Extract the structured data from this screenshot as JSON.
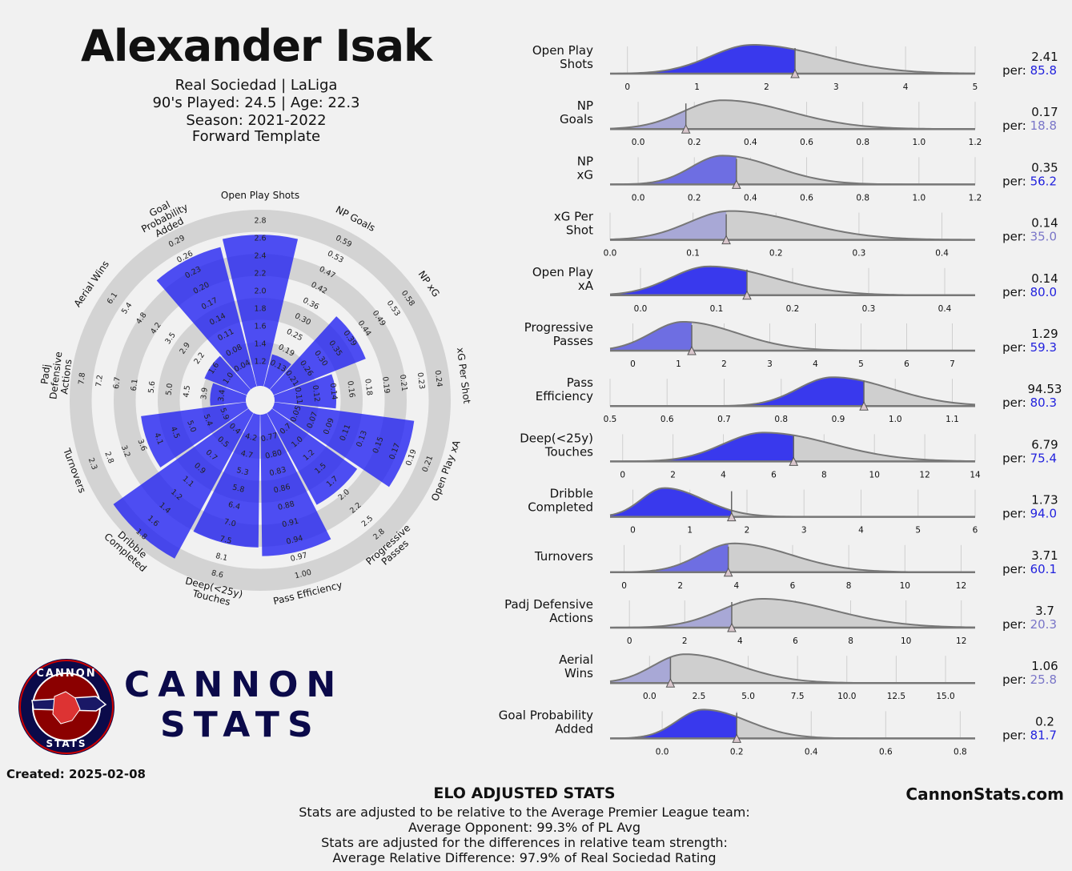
{
  "header": {
    "player": "Alexander Isak",
    "team_line": "Real Sociedad | LaLiga",
    "played_line": "90's Played: 24.5 | Age: 22.3",
    "season_line": "Season: 2021-2022",
    "template_line": "Forward Template"
  },
  "logo": {
    "ring_top": "CANNON",
    "ring_bottom": "STATS",
    "word1": "CANNON",
    "word2": "STATS"
  },
  "created": "Created: 2025-02-08",
  "footer": {
    "title": "ELO ADJUSTED STATS",
    "line1": "Stats are adjusted to be relative to the Average Premier League team:",
    "line2": "Average Opponent: 99.3% of PL Avg",
    "line3": "Stats are adjusted for the differences in relative team strength:",
    "line4": "Average Relative Difference: 97.9% of Real Sociedad Rating",
    "site": "CannonStats.com"
  },
  "colors": {
    "accent": "#1f1ff2",
    "light_fill": "#9a9ad6",
    "ring": "#d3d3d3",
    "dist_grey": "#cfcfcf",
    "pct_high": "#2222dd",
    "pct_low": "#7a76c8"
  },
  "chart_data": [
    {
      "type": "radar",
      "axes": [
        {
          "label": "Open Play Shots",
          "pct": 85.8,
          "ticks": [
            "1.2",
            "1.4",
            "1.6",
            "1.8",
            "2.0",
            "2.2",
            "2.4",
            "2.6",
            "2.8"
          ]
        },
        {
          "label": "NP Goals",
          "pct": 18.8,
          "ticks": [
            "0.13",
            "0.19",
            "0.25",
            "0.30",
            "0.36",
            "0.42",
            "0.47",
            "0.53",
            "0.59"
          ]
        },
        {
          "label": "NP xG",
          "pct": 56.2,
          "ticks": [
            "0.21",
            "0.26",
            "0.30",
            "0.35",
            "0.39",
            "0.44",
            "0.49",
            "0.53",
            "0.58"
          ]
        },
        {
          "label": "xG Per Shot",
          "pct": 35.0,
          "ticks": [
            "0.11",
            "0.12",
            "0.14",
            "0.16",
            "0.18",
            "0.19",
            "0.21",
            "0.23",
            "0.24"
          ]
        },
        {
          "label": "Open Play xA",
          "pct": 80.0,
          "ticks": [
            "0.05",
            "0.07",
            "0.09",
            "0.11",
            "0.13",
            "0.15",
            "0.17",
            "0.19",
            "0.21"
          ]
        },
        {
          "label": "Progressive Passes",
          "pct": 59.3,
          "ticks": [
            "0.7",
            "1.0",
            "1.2",
            "1.5",
            "1.7",
            "2.0",
            "2.2",
            "2.5",
            "2.8"
          ]
        },
        {
          "label": "Pass Efficiency",
          "pct": 80.3,
          "ticks": [
            "0.77",
            "0.80",
            "0.83",
            "0.86",
            "0.88",
            "0.91",
            "0.94",
            "0.97",
            "1.00"
          ]
        },
        {
          "label": "Deep(<25y) Touches",
          "pct": 75.4,
          "ticks": [
            "4.2",
            "4.7",
            "5.3",
            "5.8",
            "6.4",
            "7.0",
            "7.5",
            "8.1",
            "8.6"
          ]
        },
        {
          "label": "Dribble Completed",
          "pct": 94.0,
          "ticks": [
            "0.4",
            "0.5",
            "0.7",
            "0.9",
            "1.1",
            "1.2",
            "1.4",
            "1.6",
            "1.8"
          ]
        },
        {
          "label": "Turnovers",
          "pct": 60.1,
          "ticks": [
            "5.9",
            "5.4",
            "5.0",
            "4.5",
            "4.1",
            "3.6",
            "3.2",
            "2.8",
            "2.3"
          ]
        },
        {
          "label": "Padj Defensive Actions",
          "pct": 20.3,
          "ticks": [
            "3.4",
            "3.9",
            "4.5",
            "5.0",
            "5.6",
            "6.1",
            "6.7",
            "7.2",
            "7.8"
          ]
        },
        {
          "label": "Aerial Wins",
          "pct": 25.8,
          "ticks": [
            "1.0",
            "1.6",
            "2.2",
            "2.9",
            "3.5",
            "4.2",
            "4.8",
            "5.4",
            "6.1"
          ]
        },
        {
          "label": "Goal Probability Added",
          "pct": 81.7,
          "ticks": [
            "0.04",
            "0.08",
            "0.11",
            "0.14",
            "0.17",
            "0.20",
            "0.23",
            "0.26",
            "0.29"
          ]
        }
      ]
    },
    {
      "type": "area",
      "series": [
        {
          "label": "Open Play\nShots",
          "value": "2.41",
          "per_label": "per:",
          "pct": "85.8",
          "pct_num": 85.8,
          "xmin": -0.25,
          "xmax": 5.0,
          "mean": 1.8,
          "sd": 0.6,
          "ticks": [
            0,
            1,
            2,
            3,
            4,
            5
          ],
          "tick_labels": [
            "0",
            "1",
            "2",
            "3",
            "4",
            "5"
          ],
          "player": 2.41
        },
        {
          "label": "NP\nGoals",
          "value": "0.17",
          "per_label": "per:",
          "pct": "18.8",
          "pct_num": 18.8,
          "xmin": -0.1,
          "xmax": 1.2,
          "mean": 0.3,
          "sd": 0.14,
          "ticks": [
            0,
            0.2,
            0.4,
            0.6,
            0.8,
            1.0,
            1.2
          ],
          "tick_labels": [
            "0.0",
            "0.2",
            "0.4",
            "0.6",
            "0.8",
            "1.0",
            "1.2"
          ],
          "player": 0.17
        },
        {
          "label": "NP\nxG",
          "value": "0.35",
          "per_label": "per:",
          "pct": "56.2",
          "pct_num": 56.2,
          "xmin": -0.1,
          "xmax": 1.2,
          "mean": 0.3,
          "sd": 0.11,
          "ticks": [
            0,
            0.2,
            0.4,
            0.6,
            0.8,
            1.0,
            1.2
          ],
          "tick_labels": [
            "0.0",
            "0.2",
            "0.4",
            "0.6",
            "0.8",
            "1.0",
            "1.2"
          ],
          "player": 0.35
        },
        {
          "label": "xG Per\nShot",
          "value": "0.14",
          "per_label": "per:",
          "pct": "35.0",
          "pct_num": 35.0,
          "xmin": 0.0,
          "xmax": 0.44,
          "mean": 0.145,
          "sd": 0.05,
          "ticks": [
            0,
            0.1,
            0.2,
            0.3,
            0.4
          ],
          "tick_labels": [
            "0.0",
            "0.1",
            "0.2",
            "0.3",
            "0.4"
          ],
          "player": 0.14
        },
        {
          "label": "Open Play\nxA",
          "value": "0.14",
          "per_label": "per:",
          "pct": "80.0",
          "pct_num": 80.0,
          "xmin": -0.04,
          "xmax": 0.44,
          "mean": 0.09,
          "sd": 0.05,
          "ticks": [
            0,
            0.1,
            0.2,
            0.3,
            0.4
          ],
          "tick_labels": [
            "0.0",
            "0.1",
            "0.2",
            "0.3",
            "0.4"
          ],
          "player": 0.14
        },
        {
          "label": "Progressive\nPasses",
          "value": "1.29",
          "per_label": "per:",
          "pct": "59.3",
          "pct_num": 59.3,
          "xmin": -0.5,
          "xmax": 7.5,
          "mean": 1.1,
          "sd": 0.7,
          "ticks": [
            0,
            1,
            2,
            3,
            4,
            5,
            6,
            7
          ],
          "tick_labels": [
            "0",
            "1",
            "2",
            "3",
            "4",
            "5",
            "6",
            "7"
          ],
          "player": 1.29
        },
        {
          "label": "Pass\nEfficiency",
          "value": "94.53",
          "per_label": "per:",
          "pct": "80.3",
          "pct_num": 80.3,
          "xmin": 0.5,
          "xmax": 1.14,
          "mean": 0.89,
          "sd": 0.06,
          "ticks": [
            0.5,
            0.6,
            0.7,
            0.8,
            0.9,
            1.0,
            1.1
          ],
          "tick_labels": [
            "0.5",
            "0.6",
            "0.7",
            "0.8",
            "0.9",
            "1.0",
            "1.1"
          ],
          "player": 0.945
        },
        {
          "label": "Deep(<25y)\nTouches",
          "value": "6.79",
          "per_label": "per:",
          "pct": "75.4",
          "pct_num": 75.4,
          "xmin": -0.5,
          "xmax": 14.0,
          "mean": 5.6,
          "sd": 1.6,
          "ticks": [
            0,
            2,
            4,
            6,
            8,
            10,
            12,
            14
          ],
          "tick_labels": [
            "0",
            "2",
            "4",
            "6",
            "8",
            "10",
            "12",
            "14"
          ],
          "player": 6.79
        },
        {
          "label": "Dribble\nCompleted",
          "value": "1.73",
          "per_label": "per:",
          "pct": "94.0",
          "pct_num": 94.0,
          "xmin": -0.4,
          "xmax": 6.0,
          "mean": 0.55,
          "sd": 0.4,
          "ticks": [
            0,
            1,
            2,
            3,
            4,
            5,
            6
          ],
          "tick_labels": [
            "0",
            "1",
            "2",
            "3",
            "4",
            "5",
            "6"
          ],
          "player": 1.73
        },
        {
          "label": "Turnovers",
          "value": "3.71",
          "per_label": "per:",
          "pct": "60.1",
          "pct_num": 60.1,
          "xmin": -0.5,
          "xmax": 12.5,
          "mean": 3.9,
          "sd": 1.2,
          "ticks": [
            0,
            2,
            4,
            6,
            8,
            10,
            12
          ],
          "tick_labels": [
            "0",
            "2",
            "4",
            "6",
            "8",
            "10",
            "12"
          ],
          "player": 3.71
        },
        {
          "label": "Padj Defensive\nActions",
          "value": "3.7",
          "per_label": "per:",
          "pct": "20.3",
          "pct_num": 20.3,
          "xmin": -0.7,
          "xmax": 12.5,
          "mean": 4.8,
          "sd": 1.5,
          "ticks": [
            0,
            2,
            4,
            6,
            8,
            10,
            12
          ],
          "tick_labels": [
            "0",
            "2",
            "4",
            "6",
            "8",
            "10",
            "12"
          ],
          "player": 3.7
        },
        {
          "label": "Aerial\nWins",
          "value": "1.06",
          "per_label": "per:",
          "pct": "25.8",
          "pct_num": 25.8,
          "xmin": -2.0,
          "xmax": 16.5,
          "mean": 1.8,
          "sd": 1.6,
          "ticks": [
            0,
            2.5,
            5,
            7.5,
            10,
            12.5,
            15
          ],
          "tick_labels": [
            "0.0",
            "2.5",
            "5.0",
            "7.5",
            "10.0",
            "12.5",
            "15.0"
          ],
          "player": 1.06
        },
        {
          "label": "Goal Probability\nAdded",
          "value": "0.2",
          "per_label": "per:",
          "pct": "81.7",
          "pct_num": 81.7,
          "xmin": -0.14,
          "xmax": 0.84,
          "mean": 0.11,
          "sd": 0.07,
          "ticks": [
            0,
            0.2,
            0.4,
            0.6,
            0.8
          ],
          "tick_labels": [
            "0.0",
            "0.2",
            "0.4",
            "0.6",
            "0.8"
          ],
          "player": 0.2
        }
      ]
    }
  ]
}
